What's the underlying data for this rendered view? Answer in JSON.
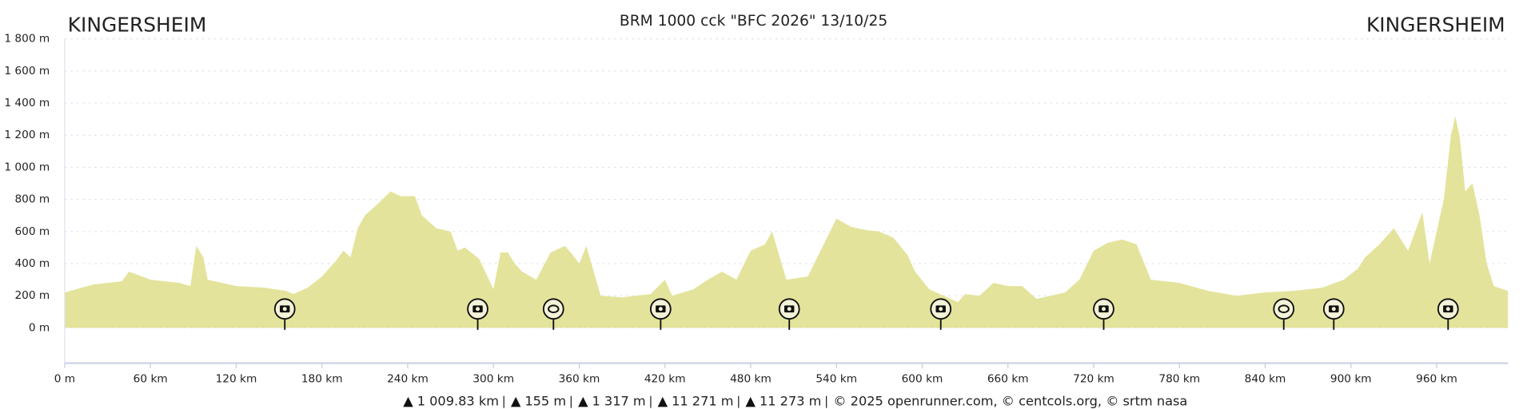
{
  "chart_data": {
    "type": "area",
    "title": "BRM 1000 cck \"BFC 2026\" 13/10/25",
    "start_label": "KINGERSHEIM",
    "end_label": "KINGERSHEIM",
    "color": "#e3e39b",
    "grid": true,
    "x": [
      0,
      20,
      40,
      45,
      60,
      80,
      88,
      92,
      97,
      100,
      120,
      140,
      155,
      160,
      170,
      180,
      190,
      195,
      200,
      205,
      210,
      220,
      228,
      235,
      245,
      250,
      260,
      270,
      275,
      280,
      290,
      300,
      305,
      310,
      315,
      320,
      330,
      340,
      350,
      355,
      360,
      365,
      375,
      390,
      410,
      420,
      425,
      440,
      450,
      460,
      470,
      480,
      490,
      495,
      505,
      520,
      530,
      540,
      550,
      560,
      570,
      580,
      590,
      595,
      605,
      615,
      625,
      630,
      640,
      650,
      660,
      670,
      680,
      700,
      710,
      720,
      730,
      740,
      750,
      760,
      780,
      800,
      820,
      840,
      860,
      880,
      895,
      905,
      910,
      920,
      930,
      940,
      950,
      955,
      965,
      970,
      973,
      976,
      980,
      985,
      990,
      995,
      1000,
      1009.83
    ],
    "values": [
      220,
      270,
      290,
      350,
      300,
      280,
      260,
      510,
      440,
      300,
      260,
      250,
      230,
      210,
      250,
      320,
      420,
      480,
      440,
      620,
      700,
      780,
      850,
      820,
      820,
      700,
      620,
      600,
      480,
      500,
      430,
      240,
      470,
      470,
      400,
      350,
      300,
      470,
      510,
      460,
      400,
      510,
      200,
      190,
      210,
      300,
      200,
      240,
      300,
      350,
      300,
      480,
      520,
      600,
      300,
      320,
      500,
      680,
      630,
      610,
      600,
      560,
      450,
      350,
      240,
      200,
      160,
      210,
      200,
      280,
      260,
      260,
      180,
      220,
      300,
      480,
      530,
      550,
      520,
      300,
      280,
      230,
      200,
      220,
      230,
      250,
      300,
      370,
      440,
      520,
      620,
      480,
      720,
      400,
      800,
      1200,
      1317,
      1200,
      850,
      900,
      700,
      400,
      260,
      230
    ],
    "photo_markers": [
      154,
      289,
      417,
      507,
      613,
      727,
      888,
      968
    ],
    "other_markers": [
      342,
      853
    ],
    "xlim": [
      0,
      1010
    ],
    "xticks": [
      {
        "value": 0,
        "label": "0 m"
      },
      {
        "value": 60,
        "label": "60 km"
      },
      {
        "value": 120,
        "label": "120 km"
      },
      {
        "value": 180,
        "label": "180 km"
      },
      {
        "value": 240,
        "label": "240 km"
      },
      {
        "value": 300,
        "label": "300 km"
      },
      {
        "value": 360,
        "label": "360 km"
      },
      {
        "value": 420,
        "label": "420 km"
      },
      {
        "value": 480,
        "label": "480 km"
      },
      {
        "value": 540,
        "label": "540 km"
      },
      {
        "value": 600,
        "label": "600 km"
      },
      {
        "value": 660,
        "label": "660 km"
      },
      {
        "value": 720,
        "label": "720 km"
      },
      {
        "value": 780,
        "label": "780 km"
      },
      {
        "value": 840,
        "label": "840 km"
      },
      {
        "value": 900,
        "label": "900 km"
      },
      {
        "value": 960,
        "label": "960 km"
      }
    ],
    "ylim": [
      -220,
      1800
    ],
    "yticks": [
      {
        "value": 0,
        "label": "0 m"
      },
      {
        "value": 200,
        "label": "200 m"
      },
      {
        "value": 400,
        "label": "400 m"
      },
      {
        "value": 600,
        "label": "600 m"
      },
      {
        "value": 800,
        "label": "800 m"
      },
      {
        "value": 1000,
        "label": "1 000 m"
      },
      {
        "value": 1200,
        "label": "1 200 m"
      },
      {
        "value": 1400,
        "label": "1 400 m"
      },
      {
        "value": 1600,
        "label": "1 600 m"
      },
      {
        "value": 1800,
        "label": "1 800 m"
      }
    ],
    "stats": [
      "1 009.83 km",
      "155 m",
      "1 317 m",
      "11 271 m",
      "11 273 m",
      "© 2025 openrunner.com, © centcols.org, © srtm nasa"
    ]
  }
}
